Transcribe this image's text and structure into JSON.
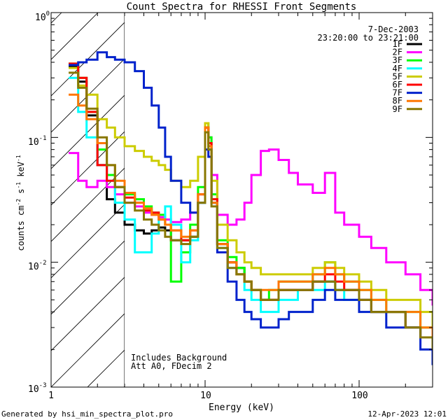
{
  "footer": {
    "left": "Generated by hsi_min_spectra_plot.pro",
    "right": "12-Apr-2023 12:01"
  },
  "chart_data": {
    "type": "line",
    "title": "Count Spectra for RHESSI Front Segments",
    "xlabel": "Energy (keV)",
    "ylabel": "counts cm",
    "ylabel_sup1": "-2",
    "ylabel_mid": " s",
    "ylabel_sup2": "-1",
    "ylabel_tail": " keV",
    "ylabel_sup3": "-1",
    "x_scale": "log",
    "y_scale": "log",
    "xlim": [
      1,
      300
    ],
    "ylim": [
      0.001,
      1
    ],
    "x_ticks": [
      {
        "v": 1,
        "label": "1"
      },
      {
        "v": 10,
        "label": "10"
      },
      {
        "v": 100,
        "label": "100"
      }
    ],
    "y_ticks": [
      {
        "v": 1,
        "base": "10",
        "exp": "0"
      },
      {
        "v": 0.1,
        "base": "10",
        "exp": "-1"
      },
      {
        "v": 0.01,
        "base": "10",
        "exp": "-2"
      },
      {
        "v": 0.001,
        "base": "10",
        "exp": "-3"
      }
    ],
    "date": "7-Dec-2003",
    "time_range": "23:20:00 to 23:21:00",
    "annotation_lines": [
      "Includes Background",
      "Att A0, FDecim 2"
    ],
    "hatched_region_max_keV": 3,
    "series": [
      {
        "name": "1F",
        "color": "#000000",
        "x": [
          1.3,
          1.5,
          1.7,
          2.0,
          2.3,
          2.6,
          3.0,
          3.5,
          4.0,
          4.5,
          5.0,
          5.5,
          6.0,
          7.0,
          8.0,
          9.0,
          10.0,
          10.5,
          11.0,
          12.0,
          14.0,
          16.0,
          18.0,
          20.0,
          23.0,
          26.0,
          30.0,
          35.0,
          40.0,
          50.0,
          60.0,
          70.0,
          80.0,
          100.0,
          120.0,
          150.0,
          200.0,
          250.0,
          300.0
        ],
        "y": [
          0.37,
          0.28,
          0.15,
          0.06,
          0.032,
          0.025,
          0.02,
          0.018,
          0.017,
          0.018,
          0.019,
          0.018,
          0.015,
          0.015,
          0.016,
          0.03,
          0.12,
          0.09,
          0.03,
          0.014,
          0.01,
          0.009,
          0.007,
          0.006,
          0.005,
          0.005,
          0.006,
          0.006,
          0.006,
          0.007,
          0.007,
          0.006,
          0.006,
          0.005,
          0.004,
          0.004,
          0.003,
          0.0025,
          0.002
        ]
      },
      {
        "name": "2F",
        "color": "#ff00ff",
        "x": [
          1.3,
          1.5,
          1.7,
          2.0,
          2.3,
          2.6,
          3.0,
          3.5,
          4.0,
          4.5,
          5.0,
          5.5,
          6.0,
          7.0,
          8.0,
          9.0,
          10.0,
          10.5,
          11.0,
          12.0,
          14.0,
          16.0,
          18.0,
          20.0,
          23.0,
          26.0,
          30.0,
          35.0,
          40.0,
          50.0,
          60.0,
          70.0,
          80.0,
          100.0,
          120.0,
          150.0,
          200.0,
          250.0,
          300.0
        ],
        "y": [
          0.075,
          0.045,
          0.04,
          0.045,
          0.04,
          0.035,
          0.03,
          0.028,
          0.025,
          0.024,
          0.023,
          0.022,
          0.021,
          0.022,
          0.025,
          0.035,
          0.12,
          0.1,
          0.05,
          0.024,
          0.02,
          0.022,
          0.03,
          0.05,
          0.078,
          0.08,
          0.066,
          0.052,
          0.042,
          0.036,
          0.052,
          0.025,
          0.02,
          0.016,
          0.013,
          0.01,
          0.008,
          0.006,
          0.0045
        ]
      },
      {
        "name": "3F",
        "color": "#00ff00",
        "x": [
          1.3,
          1.5,
          1.7,
          2.0,
          2.3,
          2.6,
          3.0,
          3.5,
          4.0,
          4.5,
          5.0,
          5.5,
          6.0,
          7.0,
          8.0,
          9.0,
          10.0,
          10.5,
          11.0,
          12.0,
          14.0,
          16.0,
          18.0,
          20.0,
          23.0,
          26.0,
          30.0,
          35.0,
          40.0,
          50.0,
          60.0,
          70.0,
          80.0,
          100.0,
          120.0,
          150.0,
          200.0,
          250.0,
          300.0
        ],
        "y": [
          0.39,
          0.3,
          0.16,
          0.08,
          0.05,
          0.04,
          0.035,
          0.032,
          0.028,
          0.025,
          0.024,
          0.02,
          0.007,
          0.012,
          0.02,
          0.04,
          0.13,
          0.1,
          0.035,
          0.015,
          0.011,
          0.009,
          0.007,
          0.006,
          0.005,
          0.006,
          0.007,
          0.007,
          0.007,
          0.008,
          0.01,
          0.008,
          0.007,
          0.006,
          0.005,
          0.004,
          0.004,
          0.003,
          0.0025
        ]
      },
      {
        "name": "4F",
        "color": "#00ffff",
        "x": [
          1.3,
          1.5,
          1.7,
          2.0,
          2.3,
          2.6,
          3.0,
          3.5,
          4.0,
          4.5,
          5.0,
          5.5,
          6.0,
          7.0,
          8.0,
          9.0,
          10.0,
          10.5,
          11.0,
          12.0,
          14.0,
          16.0,
          18.0,
          20.0,
          23.0,
          26.0,
          30.0,
          35.0,
          40.0,
          50.0,
          60.0,
          70.0,
          80.0,
          100.0,
          120.0,
          150.0,
          200.0,
          250.0,
          300.0
        ],
        "y": [
          0.3,
          0.16,
          0.1,
          0.06,
          0.045,
          0.03,
          0.022,
          0.012,
          0.012,
          0.017,
          0.022,
          0.028,
          0.02,
          0.01,
          0.015,
          0.03,
          0.11,
          0.08,
          0.03,
          0.013,
          0.009,
          0.008,
          0.006,
          0.005,
          0.004,
          0.004,
          0.005,
          0.005,
          0.006,
          0.006,
          0.007,
          0.006,
          0.005,
          0.005,
          0.004,
          0.004,
          0.003,
          0.0025,
          0.002
        ]
      },
      {
        "name": "5F",
        "color": "#cccc00",
        "x": [
          1.3,
          1.5,
          1.7,
          2.0,
          2.3,
          2.6,
          3.0,
          3.5,
          4.0,
          4.5,
          5.0,
          5.5,
          6.0,
          7.0,
          8.0,
          9.0,
          10.0,
          10.5,
          11.0,
          12.0,
          14.0,
          16.0,
          18.0,
          20.0,
          23.0,
          26.0,
          30.0,
          35.0,
          40.0,
          50.0,
          60.0,
          70.0,
          80.0,
          100.0,
          120.0,
          150.0,
          200.0,
          250.0,
          300.0
        ],
        "y": [
          0.36,
          0.26,
          0.22,
          0.14,
          0.12,
          0.1,
          0.085,
          0.078,
          0.07,
          0.065,
          0.06,
          0.055,
          0.045,
          0.04,
          0.045,
          0.07,
          0.13,
          0.09,
          0.045,
          0.02,
          0.015,
          0.012,
          0.01,
          0.009,
          0.008,
          0.008,
          0.008,
          0.008,
          0.008,
          0.009,
          0.01,
          0.009,
          0.008,
          0.007,
          0.006,
          0.005,
          0.005,
          0.004,
          0.003
        ]
      },
      {
        "name": "6F",
        "color": "#ff0000",
        "x": [
          1.3,
          1.5,
          1.7,
          2.0,
          2.3,
          2.6,
          3.0,
          3.5,
          4.0,
          4.5,
          5.0,
          5.5,
          6.0,
          7.0,
          8.0,
          9.0,
          10.0,
          10.5,
          11.0,
          12.0,
          14.0,
          16.0,
          18.0,
          20.0,
          23.0,
          26.0,
          30.0,
          35.0,
          40.0,
          50.0,
          60.0,
          70.0,
          80.0,
          100.0,
          120.0,
          150.0,
          200.0,
          250.0,
          300.0
        ],
        "y": [
          0.39,
          0.3,
          0.16,
          0.06,
          0.045,
          0.04,
          0.033,
          0.03,
          0.026,
          0.025,
          0.022,
          0.02,
          0.018,
          0.015,
          0.018,
          0.035,
          0.12,
          0.09,
          0.032,
          0.014,
          0.01,
          0.008,
          0.007,
          0.006,
          0.005,
          0.005,
          0.006,
          0.006,
          0.006,
          0.007,
          0.008,
          0.007,
          0.006,
          0.005,
          0.004,
          0.004,
          0.003,
          0.0025,
          0.002
        ]
      },
      {
        "name": "7F",
        "color": "#0022cc",
        "x": [
          1.3,
          1.5,
          1.7,
          2.0,
          2.3,
          2.6,
          3.0,
          3.5,
          4.0,
          4.5,
          5.0,
          5.5,
          6.0,
          7.0,
          8.0,
          9.0,
          10.0,
          10.5,
          11.0,
          12.0,
          14.0,
          16.0,
          18.0,
          20.0,
          23.0,
          26.0,
          30.0,
          35.0,
          40.0,
          50.0,
          60.0,
          70.0,
          80.0,
          100.0,
          120.0,
          150.0,
          200.0,
          250.0,
          300.0
        ],
        "y": [
          0.38,
          0.4,
          0.42,
          0.48,
          0.44,
          0.42,
          0.4,
          0.34,
          0.25,
          0.18,
          0.12,
          0.07,
          0.045,
          0.03,
          0.025,
          0.03,
          0.08,
          0.07,
          0.03,
          0.012,
          0.007,
          0.005,
          0.004,
          0.0035,
          0.003,
          0.003,
          0.0035,
          0.004,
          0.004,
          0.005,
          0.006,
          0.005,
          0.005,
          0.004,
          0.004,
          0.003,
          0.003,
          0.002,
          0.0015
        ]
      },
      {
        "name": "8F",
        "color": "#ff7700",
        "x": [
          1.3,
          1.5,
          1.7,
          2.0,
          2.3,
          2.6,
          3.0,
          3.5,
          4.0,
          4.5,
          5.0,
          5.5,
          6.0,
          7.0,
          8.0,
          9.0,
          10.0,
          10.5,
          11.0,
          12.0,
          14.0,
          16.0,
          18.0,
          20.0,
          23.0,
          26.0,
          30.0,
          35.0,
          40.0,
          50.0,
          60.0,
          70.0,
          80.0,
          100.0,
          120.0,
          150.0,
          200.0,
          250.0,
          300.0
        ],
        "y": [
          0.22,
          0.18,
          0.14,
          0.09,
          0.06,
          0.045,
          0.036,
          0.03,
          0.027,
          0.024,
          0.022,
          0.02,
          0.018,
          0.016,
          0.018,
          0.035,
          0.12,
          0.085,
          0.03,
          0.014,
          0.01,
          0.008,
          0.007,
          0.006,
          0.006,
          0.006,
          0.007,
          0.007,
          0.007,
          0.008,
          0.009,
          0.008,
          0.007,
          0.006,
          0.005,
          0.004,
          0.004,
          0.003,
          0.0025
        ]
      },
      {
        "name": "9F",
        "color": "#887700",
        "x": [
          1.3,
          1.5,
          1.7,
          2.0,
          2.3,
          2.6,
          3.0,
          3.5,
          4.0,
          4.5,
          5.0,
          5.5,
          6.0,
          7.0,
          8.0,
          9.0,
          10.0,
          10.5,
          11.0,
          12.0,
          14.0,
          16.0,
          18.0,
          20.0,
          23.0,
          26.0,
          30.0,
          35.0,
          40.0,
          50.0,
          60.0,
          70.0,
          80.0,
          100.0,
          120.0,
          150.0,
          200.0,
          250.0,
          300.0
        ],
        "y": [
          0.33,
          0.25,
          0.17,
          0.1,
          0.06,
          0.04,
          0.03,
          0.026,
          0.022,
          0.02,
          0.018,
          0.016,
          0.015,
          0.014,
          0.016,
          0.03,
          0.11,
          0.08,
          0.028,
          0.013,
          0.009,
          0.008,
          0.007,
          0.006,
          0.005,
          0.005,
          0.006,
          0.006,
          0.006,
          0.007,
          0.007,
          0.006,
          0.006,
          0.005,
          0.004,
          0.004,
          0.003,
          0.0025,
          0.002
        ]
      }
    ]
  }
}
